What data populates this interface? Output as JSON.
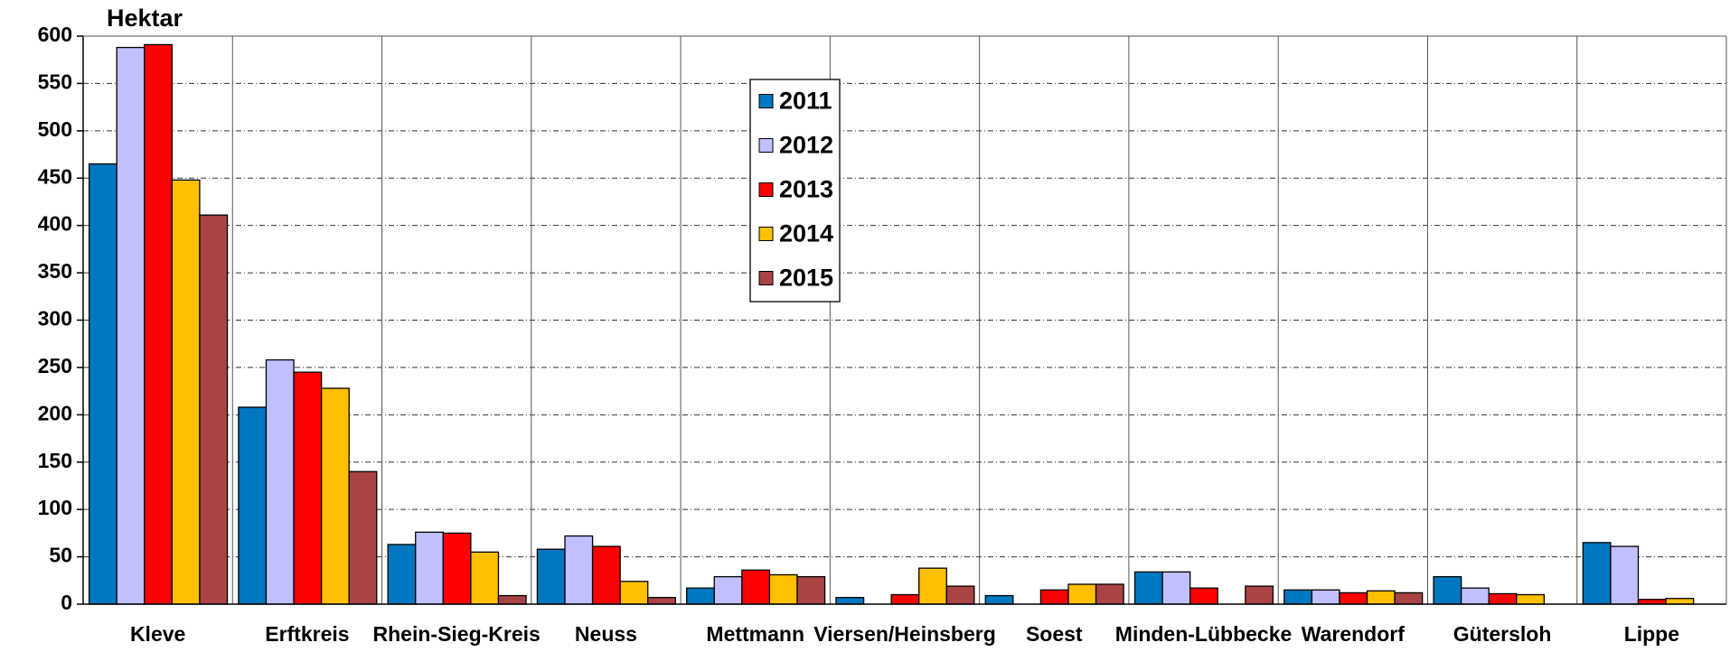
{
  "chart_data": {
    "type": "bar",
    "ylabel": "Hektar",
    "categories": [
      "Kleve",
      "Erftkreis",
      "Rhein-Sieg-Kreis",
      "Neuss",
      "Mettmann",
      "Viersen/Heinsberg",
      "Soest",
      "Minden-Lübbecke",
      "Warendorf",
      "Gütersloh",
      "Lippe"
    ],
    "series": [
      {
        "name": "2011",
        "color": "#0077c0",
        "values": [
          465,
          208,
          63,
          58,
          17,
          7,
          9,
          34,
          15,
          29,
          65
        ]
      },
      {
        "name": "2012",
        "color": "#c0c0ff",
        "values": [
          588,
          258,
          76,
          72,
          29,
          0,
          0,
          34,
          15,
          17,
          61
        ]
      },
      {
        "name": "2013",
        "color": "#ff0000",
        "values": [
          591,
          245,
          75,
          61,
          36,
          10,
          15,
          17,
          12,
          11,
          5
        ]
      },
      {
        "name": "2014",
        "color": "#ffc000",
        "values": [
          448,
          228,
          55,
          24,
          31,
          38,
          21,
          0,
          14,
          10,
          6
        ]
      },
      {
        "name": "2015",
        "color": "#aa4444",
        "values": [
          411,
          140,
          9,
          7,
          29,
          19,
          21,
          19,
          12,
          0,
          0
        ]
      }
    ],
    "ylim": [
      0,
      600
    ],
    "yticks": [
      0,
      50,
      100,
      150,
      200,
      250,
      300,
      350,
      400,
      450,
      500,
      550,
      600
    ],
    "grid": true
  }
}
